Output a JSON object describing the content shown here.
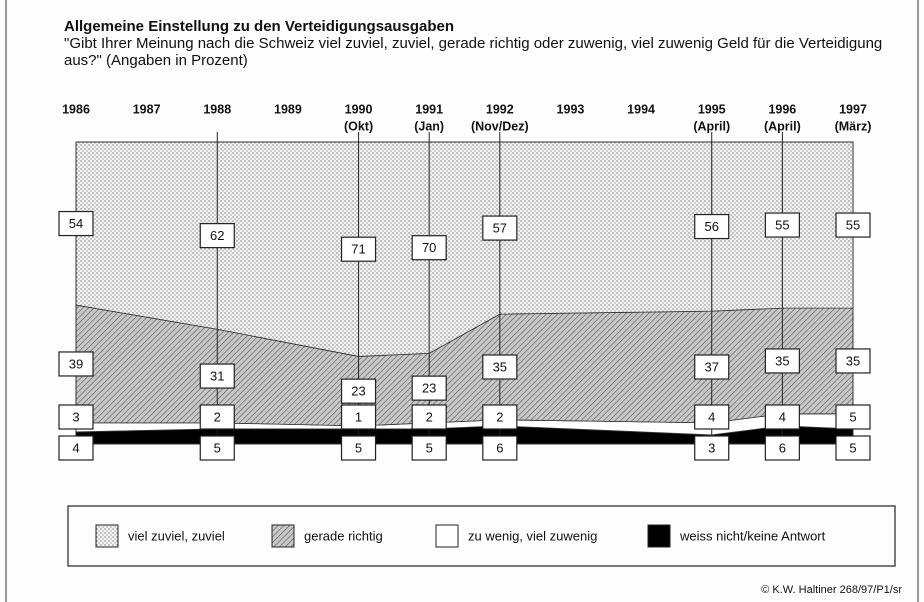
{
  "chart_data": {
    "type": "stacked_area",
    "title": "Allgemeine Einstellung zu den Verteidigungsausgaben",
    "subtitle": "\"Gibt Ihrer Meinung nach die Schweiz viel zuviel, zuviel, gerade richtig oder  zuwenig, viel zuwenig Geld für die Verteidigung aus?\" (Angaben in Prozent)",
    "categories": [
      "1986",
      "1987",
      "1988",
      "1989",
      "1990",
      "1991",
      "1992",
      "1993",
      "1994",
      "1995",
      "1996",
      "1997"
    ],
    "category_notes": [
      null,
      null,
      null,
      null,
      "(Okt)",
      "(Jan)",
      "(Nov/Dez)",
      null,
      null,
      "(April)",
      "(April)",
      "(März)"
    ],
    "series": [
      {
        "name": "viel zuviel, zuviel",
        "color": "#e4e4e4",
        "pattern": "dots",
        "values": [
          54,
          null,
          62,
          null,
          71,
          70,
          57,
          null,
          null,
          56,
          55,
          55
        ]
      },
      {
        "name": "gerade richtig",
        "color": "#bdbdbd",
        "pattern": "hatch",
        "values": [
          39,
          null,
          31,
          null,
          23,
          23,
          35,
          null,
          null,
          37,
          35,
          35
        ]
      },
      {
        "name": "zu wenig, viel zuwenig",
        "color": "#ffffff",
        "pattern": null,
        "values": [
          3,
          null,
          2,
          null,
          1,
          2,
          2,
          null,
          null,
          4,
          4,
          5
        ]
      },
      {
        "name": "weiss nicht/keine Antwort",
        "color": "#000000",
        "pattern": null,
        "values": [
          4,
          null,
          5,
          null,
          5,
          5,
          6,
          null,
          null,
          3,
          6,
          5
        ]
      }
    ],
    "ylim": [
      0,
      100
    ],
    "credit": "© K.W. Haltiner 268/97/P1/sr"
  }
}
